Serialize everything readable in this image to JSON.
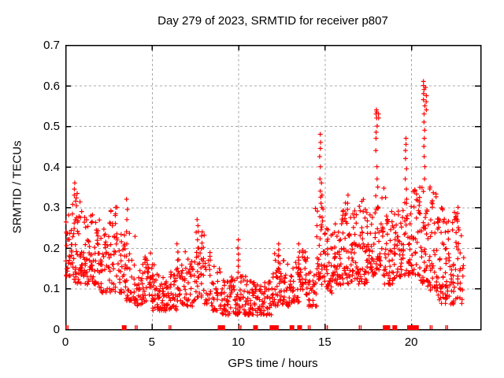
{
  "title": "Day 279 of 2023, SRMTID for receiver p807",
  "colors": {
    "marker": "#ff0000",
    "grid": "#a8a8a8",
    "frame": "#000000",
    "text": "#000000",
    "background": "#ffffff"
  },
  "chart_data": {
    "type": "scatter",
    "title": "Day 279 of 2023, SRMTID for receiver p807",
    "xlabel": "GPS time / hours",
    "ylabel": "SRMTID / TECUs",
    "series_name": "SRMTID",
    "marker": "plus",
    "marker_color": "#ff0000",
    "grid": true,
    "legend": "none",
    "xlim": [
      0,
      24
    ],
    "ylim": [
      0,
      0.7
    ],
    "xticks": [
      0,
      5,
      10,
      15,
      20
    ],
    "xtick_labels": [
      "0",
      "5",
      "10",
      "15",
      "20"
    ],
    "yticks": [
      0,
      0.1,
      0.2,
      0.3,
      0.4,
      0.5,
      0.6,
      0.7
    ],
    "ytick_labels": [
      "0",
      "0.1",
      "0.2",
      "0.3",
      "0.4",
      "0.5",
      "0.6",
      "0.7"
    ],
    "seed": 20230279,
    "envelope_bins": {
      "bin_width": 0.5,
      "columns": [
        "start_hour",
        "y_min",
        "y_max",
        "count"
      ],
      "rows": [
        [
          0.0,
          0.12,
          0.31,
          40
        ],
        [
          0.5,
          0.1,
          0.36,
          42
        ],
        [
          1.0,
          0.1,
          0.28,
          38
        ],
        [
          1.5,
          0.1,
          0.3,
          38
        ],
        [
          2.0,
          0.08,
          0.26,
          34
        ],
        [
          2.5,
          0.08,
          0.3,
          32
        ],
        [
          3.0,
          0.08,
          0.24,
          30
        ],
        [
          3.5,
          0.06,
          0.26,
          26
        ],
        [
          4.0,
          0.05,
          0.18,
          30
        ],
        [
          4.5,
          0.06,
          0.22,
          34
        ],
        [
          5.0,
          0.04,
          0.16,
          34
        ],
        [
          5.5,
          0.04,
          0.14,
          32
        ],
        [
          6.0,
          0.04,
          0.15,
          32
        ],
        [
          6.5,
          0.05,
          0.2,
          30
        ],
        [
          7.0,
          0.05,
          0.18,
          28
        ],
        [
          7.5,
          0.07,
          0.24,
          30
        ],
        [
          8.0,
          0.05,
          0.19,
          28
        ],
        [
          8.5,
          0.04,
          0.16,
          28
        ],
        [
          9.0,
          0.03,
          0.12,
          32
        ],
        [
          9.5,
          0.03,
          0.13,
          32
        ],
        [
          10.0,
          0.03,
          0.14,
          30
        ],
        [
          10.5,
          0.03,
          0.12,
          32
        ],
        [
          11.0,
          0.03,
          0.11,
          30
        ],
        [
          11.5,
          0.03,
          0.12,
          28
        ],
        [
          12.0,
          0.05,
          0.19,
          32
        ],
        [
          12.5,
          0.05,
          0.17,
          32
        ],
        [
          13.0,
          0.06,
          0.18,
          28
        ],
        [
          13.5,
          0.08,
          0.2,
          32
        ],
        [
          14.0,
          0.05,
          0.16,
          28
        ],
        [
          14.5,
          0.1,
          0.3,
          36
        ],
        [
          15.0,
          0.08,
          0.25,
          36
        ],
        [
          15.5,
          0.1,
          0.28,
          38
        ],
        [
          16.0,
          0.1,
          0.32,
          38
        ],
        [
          16.5,
          0.1,
          0.3,
          38
        ],
        [
          17.0,
          0.1,
          0.32,
          38
        ],
        [
          17.5,
          0.12,
          0.3,
          38
        ],
        [
          18.0,
          0.12,
          0.35,
          40
        ],
        [
          18.5,
          0.1,
          0.3,
          38
        ],
        [
          19.0,
          0.12,
          0.3,
          38
        ],
        [
          19.5,
          0.12,
          0.34,
          36
        ],
        [
          20.0,
          0.12,
          0.35,
          36
        ],
        [
          20.5,
          0.1,
          0.36,
          40
        ],
        [
          21.0,
          0.08,
          0.35,
          38
        ],
        [
          21.5,
          0.05,
          0.3,
          42
        ],
        [
          22.0,
          0.05,
          0.28,
          40
        ],
        [
          22.5,
          0.05,
          0.3,
          34
        ]
      ]
    },
    "spike_columns": [
      {
        "x": 0.55,
        "ys": [
          0.315,
          0.33,
          0.345,
          0.36
        ]
      },
      {
        "x": 2.9,
        "ys": [
          0.26,
          0.28,
          0.3
        ]
      },
      {
        "x": 3.55,
        "ys": [
          0.12,
          0.15,
          0.18,
          0.21,
          0.24,
          0.27,
          0.295,
          0.32
        ]
      },
      {
        "x": 6.5,
        "ys": [
          0.15,
          0.17,
          0.19,
          0.21
        ]
      },
      {
        "x": 7.65,
        "ys": [
          0.16,
          0.18,
          0.2,
          0.22,
          0.24,
          0.255,
          0.27
        ]
      },
      {
        "x": 10.0,
        "ys": [
          0.14,
          0.155,
          0.17,
          0.185,
          0.2,
          0.22
        ]
      },
      {
        "x": 12.3,
        "ys": [
          0.15,
          0.165,
          0.18,
          0.195,
          0.21
        ]
      },
      {
        "x": 13.5,
        "ys": [
          0.15,
          0.17,
          0.19,
          0.21
        ]
      },
      {
        "x": 14.75,
        "ys": [
          0.31,
          0.325,
          0.34,
          0.37,
          0.4,
          0.425,
          0.445,
          0.46,
          0.48
        ]
      },
      {
        "x": 14.85,
        "ys": [
          0.3,
          0.33,
          0.36
        ]
      },
      {
        "x": 16.3,
        "ys": [
          0.295,
          0.31,
          0.33
        ]
      },
      {
        "x": 18.0,
        "ys": [
          0.37,
          0.4,
          0.44,
          0.47,
          0.485,
          0.5,
          0.52,
          0.53,
          0.535,
          0.54
        ]
      },
      {
        "x": 18.1,
        "ys": [
          0.35,
          0.52,
          0.53
        ]
      },
      {
        "x": 19.7,
        "ys": [
          0.32,
          0.345,
          0.37,
          0.395,
          0.42,
          0.44,
          0.455,
          0.47
        ]
      },
      {
        "x": 20.75,
        "ys": [
          0.37,
          0.4,
          0.425,
          0.45,
          0.47,
          0.49,
          0.51,
          0.53,
          0.55,
          0.565,
          0.58,
          0.59,
          0.6,
          0.61
        ]
      },
      {
        "x": 20.85,
        "ys": [
          0.54,
          0.56,
          0.575,
          0.595
        ]
      },
      {
        "x": 22.7,
        "ys": [
          0.25,
          0.27,
          0.285,
          0.3
        ]
      }
    ],
    "zero_markers": {
      "thick": [
        3.4,
        8.95,
        9.1,
        11.0,
        11.95,
        12.1,
        12.2,
        13.1,
        13.55,
        18.5,
        18.65,
        19.05,
        19.9,
        20.05,
        20.3
      ],
      "thin": [
        0.05,
        0.15,
        4.05,
        4.15,
        6.0,
        6.1,
        10.05,
        10.15,
        14.05,
        14.15,
        15.05,
        15.15,
        17.0,
        17.1,
        21.1,
        21.2,
        22.0,
        22.1
      ]
    }
  }
}
